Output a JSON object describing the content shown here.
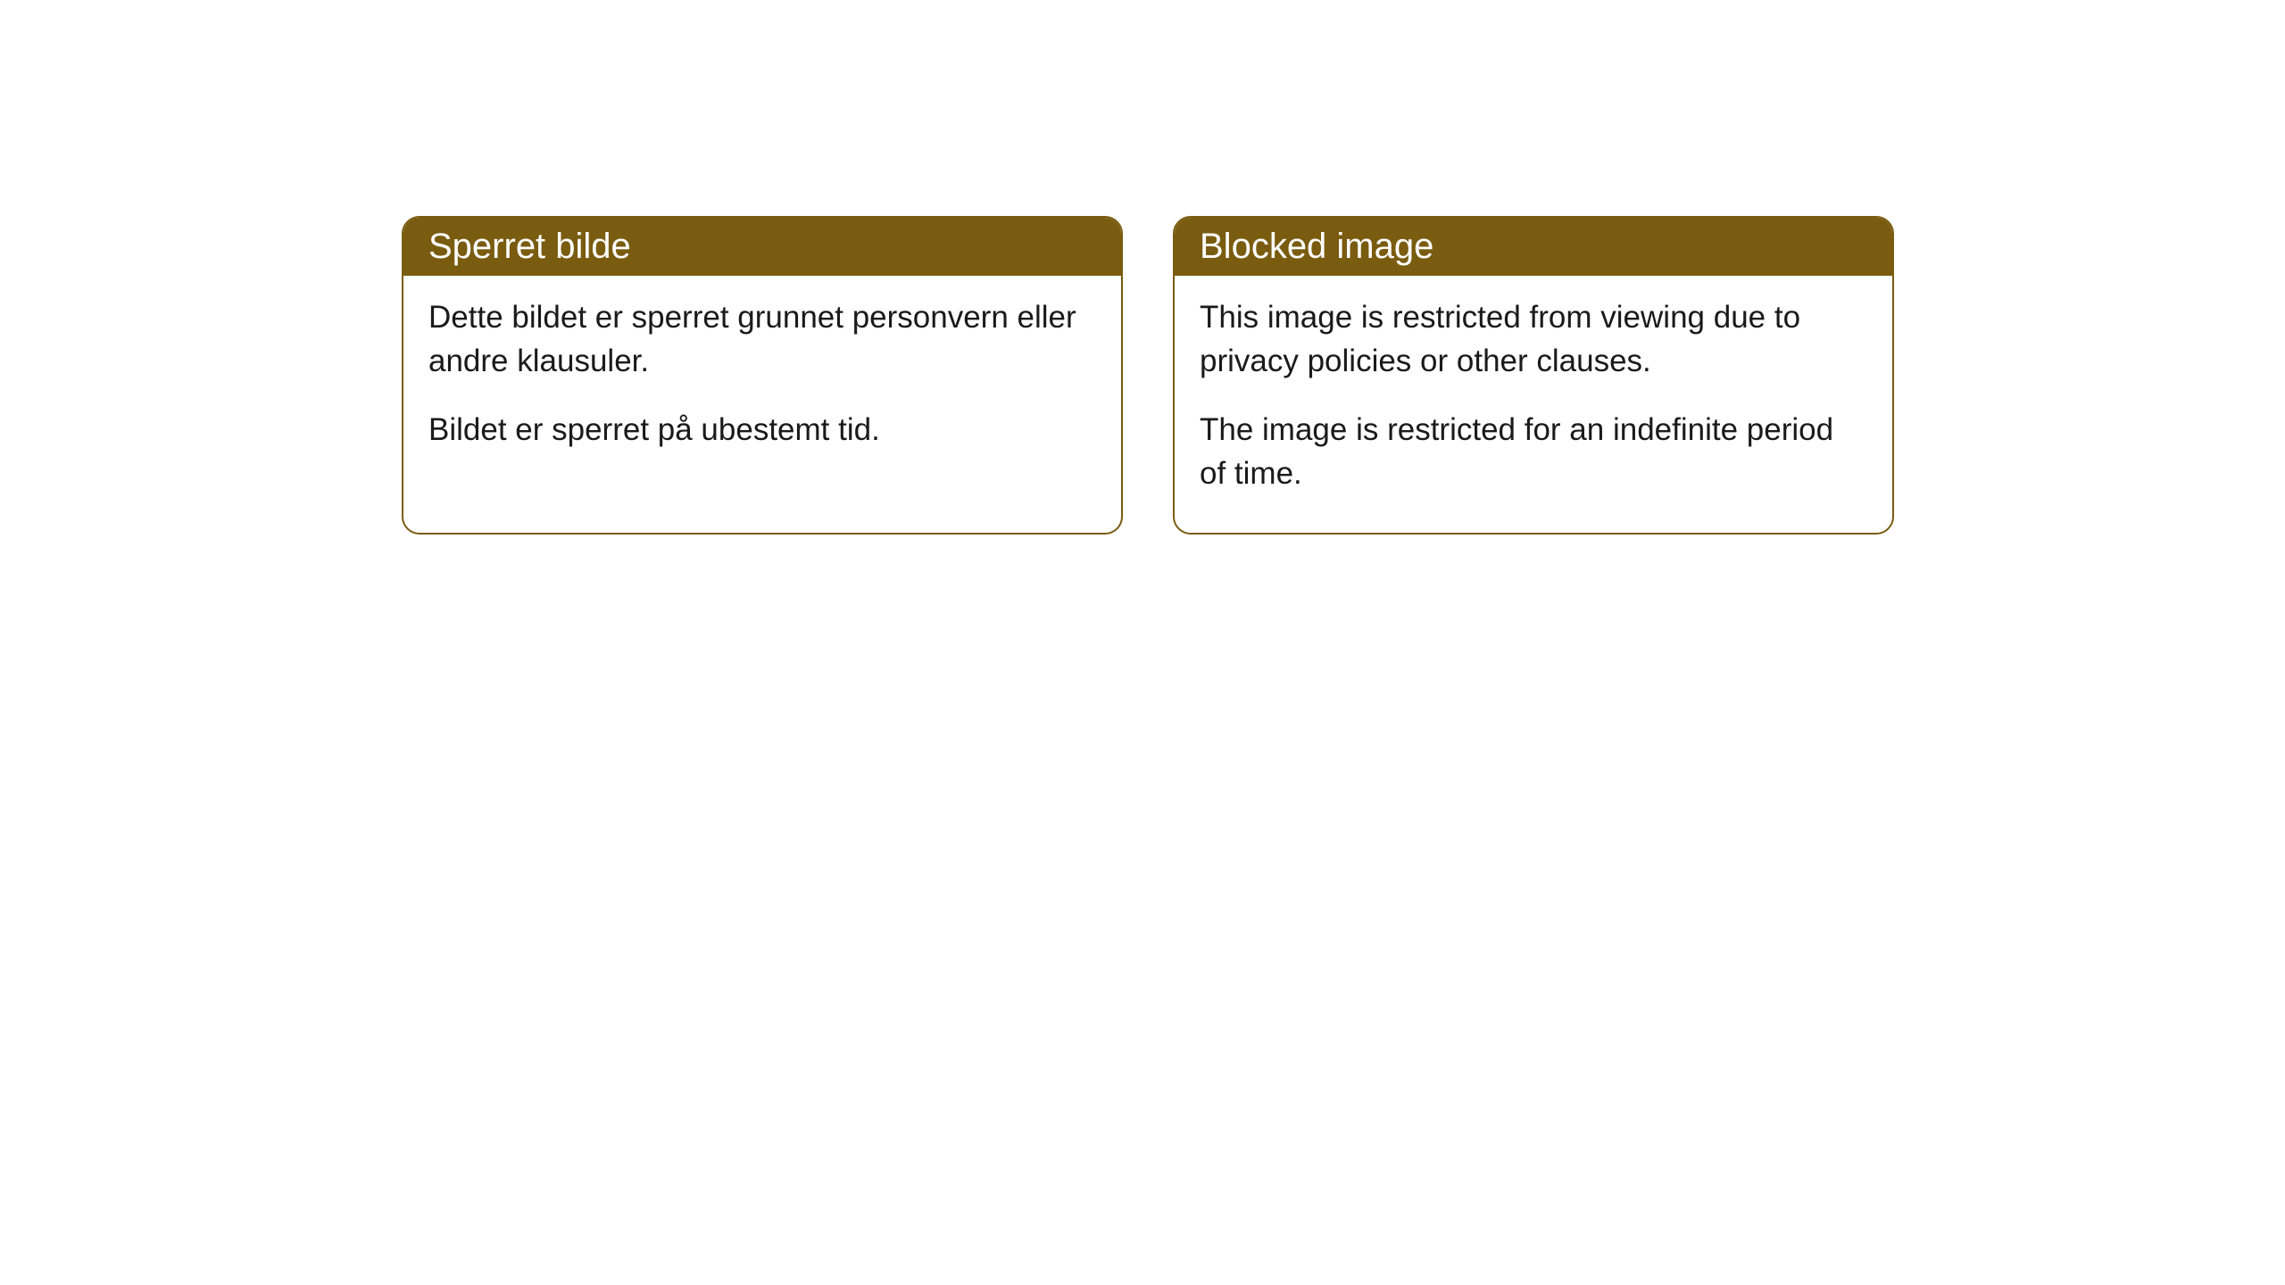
{
  "cards": [
    {
      "title": "Sperret bilde",
      "paragraph1": "Dette bildet er sperret grunnet personvern eller andre klausuler.",
      "paragraph2": "Bildet er sperret på ubestemt tid."
    },
    {
      "title": "Blocked image",
      "paragraph1": "This image is restricted from viewing due to privacy policies or other clauses.",
      "paragraph2": "The image is restricted for an indefinite period of time."
    }
  ],
  "style": {
    "header_bg": "#7a5c10",
    "header_text_color": "#ffffff",
    "border_color": "#7a5c10",
    "body_bg": "#ffffff",
    "body_text_color": "#1a1a1a",
    "border_radius": 20,
    "header_fontsize": 40,
    "body_fontsize": 35
  }
}
